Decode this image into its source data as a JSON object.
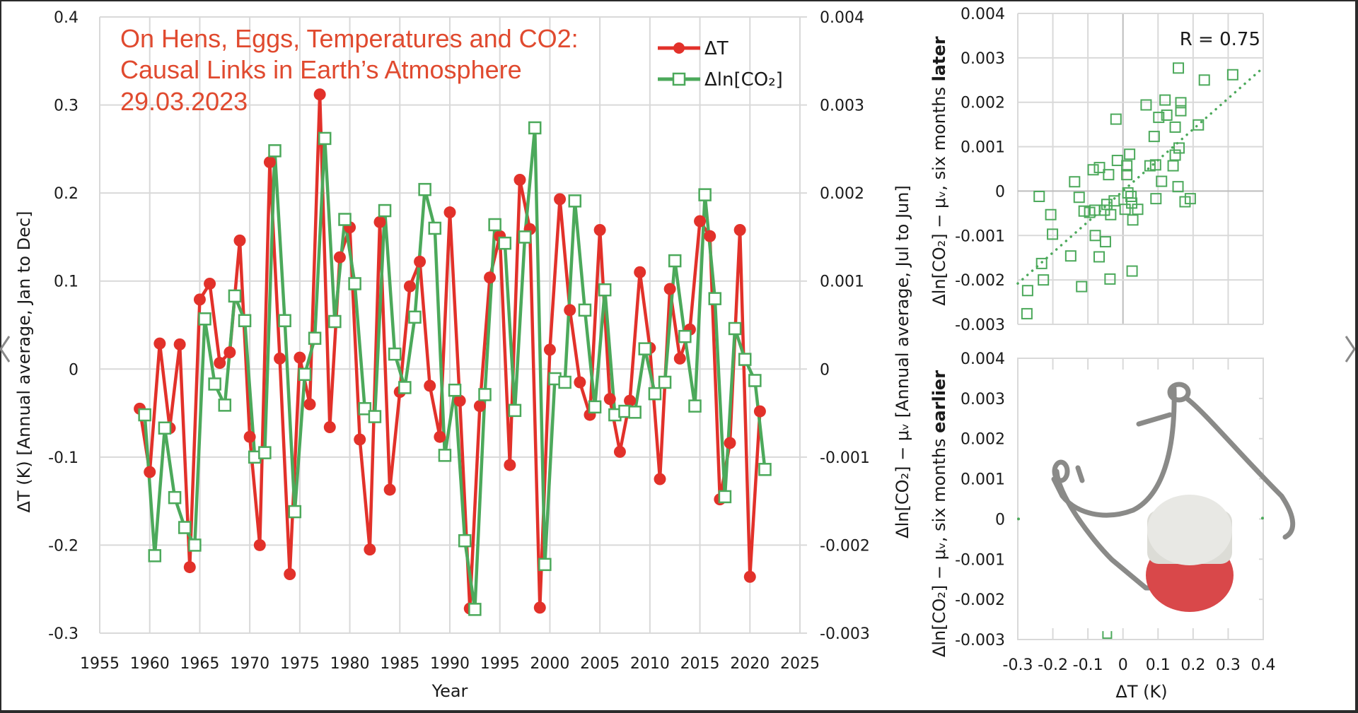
{
  "colors": {
    "red": "#e2312a",
    "green": "#4ca95b",
    "grid": "#d9d9d9",
    "title": "#e04a2f",
    "cap_red": "#d9484a",
    "cap_white": "#e8e8e4",
    "wire": "#8a8a88"
  },
  "navigation": {
    "prev_icon": "chevron-left-icon",
    "next_icon": "chevron-right-icon"
  },
  "chart_data": [
    {
      "type": "line",
      "title": [
        "On Hens, Eggs, Temperatures and CO2:",
        "Causal Links in Earth’s Atmosphere",
        "29.03.2023"
      ],
      "xlabel": "Year",
      "ylabel": "ΔT (K) [Annual average, Jan to Dec]",
      "y2label": "Δln[CO₂] − μᵥ [Annual average, Jul to Jun]",
      "xlim": [
        1955,
        2025
      ],
      "ylim": [
        -0.3,
        0.4
      ],
      "y2lim": [
        -0.003,
        0.004
      ],
      "grid": true,
      "legend": "top-right",
      "x_ticks": [
        "1955",
        "1960",
        "1965",
        "1970",
        "1975",
        "1980",
        "1985",
        "1990",
        "1995",
        "2000",
        "2005",
        "2010",
        "2015",
        "2020",
        "2025"
      ],
      "y_ticks": [
        "0.4",
        "0.3",
        "0.2",
        "0.1",
        "0",
        "-0.1",
        "-0.2",
        "-0.3"
      ],
      "y2_ticks": [
        "0.004",
        "0.003",
        "0.002",
        "0.001",
        "0",
        "-0.001",
        "-0.002",
        "-0.003"
      ],
      "series": [
        {
          "name": "ΔT",
          "axis": "left",
          "marker": "circle",
          "color": "#e2312a",
          "x_start": 1959,
          "values": [
            -0.045,
            -0.117,
            0.029,
            -0.067,
            0.028,
            -0.225,
            0.079,
            0.097,
            0.007,
            0.019,
            0.146,
            -0.077,
            -0.2,
            0.235,
            0.012,
            -0.233,
            0.013,
            -0.04,
            0.312,
            -0.066,
            0.127,
            0.161,
            -0.08,
            -0.205,
            0.167,
            -0.137,
            -0.026,
            0.094,
            0.122,
            -0.019,
            -0.077,
            0.178,
            -0.036,
            -0.272,
            -0.042,
            0.104,
            0.151,
            -0.109,
            0.215,
            0.159,
            -0.271,
            0.022,
            0.193,
            0.067,
            -0.015,
            -0.052,
            0.158,
            -0.034,
            -0.094,
            -0.036,
            0.11,
            0.024,
            -0.125,
            0.091,
            0.012,
            0.045,
            0.168,
            0.151,
            -0.148,
            -0.084,
            0.158,
            -0.236,
            -0.048
          ]
        },
        {
          "name": "Δln[CO₂]",
          "axis": "right",
          "marker": "square-open",
          "color": "#4ca95b",
          "x_start": 1959.5,
          "values": [
            -0.00052,
            -0.00212,
            -0.00067,
            -0.00146,
            -0.0018,
            -0.002,
            0.00057,
            -0.00017,
            -0.00041,
            0.00083,
            0.00055,
            -0.001,
            -0.00095,
            0.00248,
            0.00055,
            -0.00162,
            -6e-05,
            0.00035,
            0.00262,
            0.00054,
            0.0017,
            0.00097,
            -0.00045,
            -0.00054,
            0.0018,
            0.00017,
            -0.00021,
            0.00059,
            0.00204,
            0.0016,
            -0.00098,
            -0.00024,
            -0.00195,
            -0.00273,
            -0.00029,
            0.00164,
            0.00143,
            -0.00047,
            0.0015,
            0.00274,
            -0.00222,
            -0.00011,
            -0.00015,
            0.00191,
            0.00067,
            -0.00043,
            0.0009,
            -0.00052,
            -0.00048,
            -0.00049,
            0.00023,
            -0.00028,
            -0.00015,
            0.00123,
            0.00037,
            -0.00042,
            0.00198,
            0.0008,
            -0.00145,
            0.00046,
            0.00011,
            -0.00013,
            -0.00114
          ]
        }
      ]
    },
    {
      "type": "scatter",
      "ylabel_plain": "Δln[CO₂] − μᵥ, six months ",
      "ylabel_bold": "later",
      "annotation": "R = 0.75",
      "xlim": [
        -0.3,
        0.4
      ],
      "ylim": [
        -0.003,
        0.004
      ],
      "grid": true,
      "y_ticks": [
        "0.004",
        "0.003",
        "0.002",
        "0.001",
        "0",
        "-0.001",
        "-0.002",
        "-0.003"
      ],
      "trendline": {
        "style": "dotted",
        "from": [
          -0.3,
          -0.00208
        ],
        "to": [
          0.4,
          0.00278
        ]
      },
      "points": [
        [
          -0.239,
          -0.00012
        ],
        [
          -0.206,
          -0.00053
        ],
        [
          -0.201,
          -0.00097
        ],
        [
          -0.232,
          -0.00163
        ],
        [
          -0.227,
          -0.002
        ],
        [
          -0.272,
          -0.00224
        ],
        [
          -0.274,
          -0.00276
        ],
        [
          -0.138,
          0.00021
        ],
        [
          -0.125,
          -0.00014
        ],
        [
          -0.149,
          -0.00146
        ],
        [
          -0.118,
          -0.00215
        ],
        [
          -0.111,
          -0.00045
        ],
        [
          -0.095,
          -0.00048
        ],
        [
          -0.08,
          -0.00043
        ],
        [
          -0.085,
          0.00048
        ],
        [
          -0.067,
          0.00053
        ],
        [
          -0.041,
          0.00037
        ],
        [
          -0.079,
          -0.001
        ],
        [
          -0.05,
          -0.00114
        ],
        [
          -0.068,
          -0.00148
        ],
        [
          -0.037,
          -0.00198
        ],
        [
          -0.053,
          -0.00043
        ],
        [
          -0.046,
          -0.0003
        ],
        [
          -0.035,
          -0.00053
        ],
        [
          -0.025,
          -0.00022
        ],
        [
          -0.02,
          0.00162
        ],
        [
          -0.016,
          0.00069
        ],
        [
          0.006,
          -0.00041
        ],
        [
          0.011,
          0.00057
        ],
        [
          0.011,
          0.00037
        ],
        [
          0.014,
          -4e-05
        ],
        [
          0.019,
          0.00083
        ],
        [
          0.023,
          -0.00012
        ],
        [
          0.025,
          -0.00027
        ],
        [
          0.042,
          -0.00041
        ],
        [
          0.028,
          -0.00065
        ],
        [
          0.026,
          -0.0018
        ],
        [
          0.066,
          0.00194
        ],
        [
          0.089,
          0.00123
        ],
        [
          0.077,
          0.00057
        ],
        [
          0.093,
          0.00059
        ],
        [
          0.094,
          -0.00017
        ],
        [
          0.11,
          0.00022
        ],
        [
          0.102,
          0.00166
        ],
        [
          0.12,
          0.00205
        ],
        [
          0.125,
          0.00171
        ],
        [
          0.149,
          0.00144
        ],
        [
          0.143,
          0.00057
        ],
        [
          0.149,
          0.00081
        ],
        [
          0.16,
          0.00097
        ],
        [
          0.158,
          0.00277
        ],
        [
          0.165,
          0.00199
        ],
        [
          0.165,
          0.00181
        ],
        [
          0.157,
          0.0001
        ],
        [
          0.177,
          -0.00024
        ],
        [
          0.192,
          -0.00017
        ],
        [
          0.215,
          0.00149
        ],
        [
          0.232,
          0.0025
        ],
        [
          0.313,
          0.00262
        ]
      ]
    },
    {
      "type": "scatter",
      "ylabel_plain": "Δln[CO₂] − μᵥ, six months ",
      "ylabel_bold": "earlier",
      "xlabel": "ΔT (K)",
      "xlim": [
        -0.3,
        0.4
      ],
      "ylim": [
        -0.003,
        0.004
      ],
      "grid": false,
      "x_ticks": [
        "-0.3",
        "-0.2",
        "-0.1",
        "0",
        "0.1",
        "0.2",
        "0.3",
        "0.4"
      ],
      "y_ticks": [
        "0.004",
        "0.003",
        "0.002",
        "0.001",
        "0",
        "-0.001",
        "-0.002",
        "-0.003"
      ],
      "points": [
        [
          -0.045,
          -0.00288
        ]
      ],
      "overlay_image": "bottle-stopper-clasp"
    }
  ]
}
